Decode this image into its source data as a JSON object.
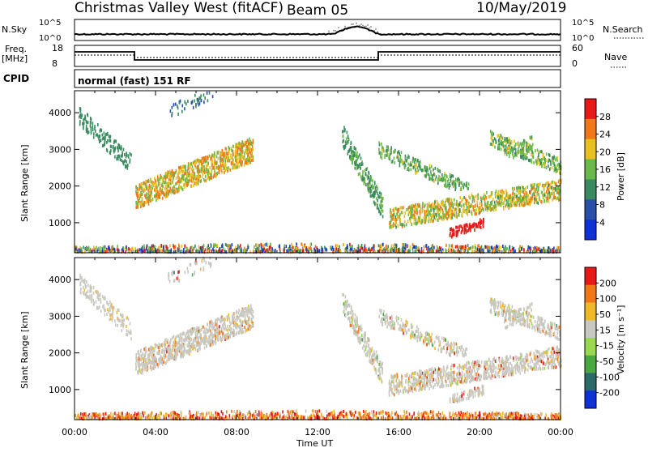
{
  "header": {
    "station": "Christmas Valley West (fitACF)",
    "beam": "Beam 05",
    "date": "10/May/2019"
  },
  "strips": {
    "nsky_label": "N.Sky",
    "nsearch_label": "N.Search",
    "nsky_ticks": [
      "10^5",
      "10^0"
    ],
    "nsearch_ticks": [
      "10^5",
      "10^0"
    ],
    "freq_label_1": "Freq.",
    "freq_label_2": "[MHz]",
    "freq_ticks": [
      "18",
      "8"
    ],
    "nave_label": "Nave",
    "nave_ticks": [
      "60",
      "0"
    ],
    "cpid_label": "CPID",
    "cpid_value": "normal (fast) 151 RF"
  },
  "chart_data": [
    {
      "type": "heatmap",
      "name": "power",
      "ylabel": "Slant Range [km]",
      "yticks": [
        1000,
        2000,
        3000,
        4000
      ],
      "ylim": [
        180,
        4600
      ],
      "xlim_hours": [
        0,
        24
      ],
      "colorbar_label": "Power [dB]",
      "colorbar_ticks": [
        "4",
        "8",
        "12",
        "16",
        "20",
        "24",
        "28"
      ],
      "colors": [
        "#1030d8",
        "#2a4fa8",
        "#3a8a60",
        "#6ab84a",
        "#e8c020",
        "#f07818",
        "#e81818"
      ]
    },
    {
      "type": "heatmap",
      "name": "velocity",
      "ylabel": "Slant Range [km]",
      "yticks": [
        1000,
        2000,
        3000,
        4000
      ],
      "ylim": [
        180,
        4600
      ],
      "xlim_hours": [
        0,
        24
      ],
      "colorbar_label": "Velocity [m s⁻¹]",
      "colorbar_ticks": [
        "200",
        "100",
        "50",
        "15",
        "-15",
        "-50",
        "-100",
        "-200"
      ],
      "colors": [
        "#1030d8",
        "#2a6a68",
        "#4aa840",
        "#9ad850",
        "#c8c8c0",
        "#f0b828",
        "#f07818",
        "#e81818"
      ]
    }
  ],
  "xaxis": {
    "label": "Time UT",
    "ticks": [
      "00:00",
      "04:00",
      "08:00",
      "12:00",
      "16:00",
      "20:00",
      "00:00"
    ]
  }
}
